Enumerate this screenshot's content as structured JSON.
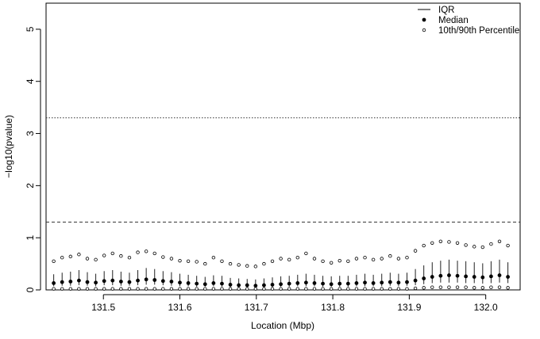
{
  "chart_data": {
    "type": "scatter",
    "title": "",
    "xlabel": "Location (Mbp)",
    "ylabel": "−log10(pvalue)",
    "xlim": [
      131.425,
      132.045
    ],
    "ylim": [
      0,
      5.5
    ],
    "xticks": [
      131.5,
      131.6,
      131.7,
      131.8,
      131.9,
      132.0
    ],
    "xtick_labels": [
      "131.5",
      "131.6",
      "131.7",
      "131.8",
      "131.9",
      "132.0"
    ],
    "yticks": [
      0,
      1,
      2,
      3,
      4,
      5
    ],
    "ytick_labels": [
      "0",
      "1",
      "2",
      "3",
      "4",
      "5"
    ],
    "reference_lines": [
      {
        "y": 3.3,
        "style": "dotted"
      },
      {
        "y": 1.3,
        "style": "dashed"
      }
    ],
    "grid": false,
    "legend": {
      "position": "top-right",
      "entries": [
        {
          "label": "IQR",
          "symbol": "segment"
        },
        {
          "label": "Median",
          "symbol": "filled-circle"
        },
        {
          "label": "10th/90th Percentile",
          "symbol": "open-circle"
        }
      ]
    },
    "x": [
      131.435,
      131.446,
      131.457,
      131.468,
      131.479,
      131.49,
      131.501,
      131.512,
      131.523,
      131.534,
      131.545,
      131.556,
      131.567,
      131.578,
      131.589,
      131.6,
      131.611,
      131.622,
      131.633,
      131.644,
      131.655,
      131.666,
      131.677,
      131.688,
      131.699,
      131.71,
      131.721,
      131.732,
      131.743,
      131.754,
      131.765,
      131.776,
      131.787,
      131.798,
      131.809,
      131.82,
      131.831,
      131.842,
      131.853,
      131.864,
      131.875,
      131.886,
      131.897,
      131.908,
      131.919,
      131.93,
      131.941,
      131.952,
      131.963,
      131.974,
      131.985,
      131.996,
      132.007,
      132.018,
      132.029
    ],
    "median": [
      0.13,
      0.15,
      0.16,
      0.18,
      0.15,
      0.14,
      0.17,
      0.18,
      0.16,
      0.15,
      0.18,
      0.2,
      0.19,
      0.17,
      0.16,
      0.14,
      0.13,
      0.12,
      0.11,
      0.13,
      0.12,
      0.1,
      0.09,
      0.09,
      0.08,
      0.09,
      0.1,
      0.11,
      0.12,
      0.13,
      0.14,
      0.13,
      0.12,
      0.11,
      0.12,
      0.12,
      0.13,
      0.14,
      0.13,
      0.14,
      0.15,
      0.14,
      0.15,
      0.18,
      0.22,
      0.25,
      0.27,
      0.28,
      0.27,
      0.26,
      0.25,
      0.24,
      0.26,
      0.28,
      0.25
    ],
    "q1": [
      0.07,
      0.08,
      0.08,
      0.09,
      0.08,
      0.07,
      0.09,
      0.09,
      0.08,
      0.08,
      0.09,
      0.1,
      0.1,
      0.09,
      0.08,
      0.07,
      0.07,
      0.06,
      0.06,
      0.07,
      0.06,
      0.05,
      0.05,
      0.05,
      0.04,
      0.05,
      0.05,
      0.06,
      0.06,
      0.07,
      0.07,
      0.07,
      0.06,
      0.06,
      0.06,
      0.06,
      0.07,
      0.07,
      0.07,
      0.07,
      0.08,
      0.07,
      0.08,
      0.09,
      0.11,
      0.13,
      0.14,
      0.14,
      0.14,
      0.13,
      0.13,
      0.12,
      0.13,
      0.14,
      0.13
    ],
    "q3": [
      0.3,
      0.33,
      0.35,
      0.38,
      0.34,
      0.31,
      0.36,
      0.38,
      0.35,
      0.33,
      0.38,
      0.42,
      0.4,
      0.36,
      0.34,
      0.31,
      0.29,
      0.27,
      0.25,
      0.28,
      0.27,
      0.23,
      0.22,
      0.21,
      0.2,
      0.22,
      0.24,
      0.26,
      0.27,
      0.29,
      0.31,
      0.29,
      0.27,
      0.26,
      0.27,
      0.27,
      0.29,
      0.31,
      0.29,
      0.31,
      0.33,
      0.31,
      0.33,
      0.4,
      0.47,
      0.53,
      0.56,
      0.58,
      0.56,
      0.55,
      0.53,
      0.51,
      0.55,
      0.58,
      0.53
    ],
    "p10": [
      0.02,
      0.02,
      0.02,
      0.02,
      0.02,
      0.02,
      0.02,
      0.02,
      0.02,
      0.02,
      0.02,
      0.02,
      0.02,
      0.02,
      0.02,
      0.02,
      0.02,
      0.02,
      0.02,
      0.02,
      0.02,
      0.02,
      0.02,
      0.02,
      0.02,
      0.02,
      0.02,
      0.02,
      0.02,
      0.02,
      0.02,
      0.02,
      0.02,
      0.02,
      0.02,
      0.02,
      0.02,
      0.02,
      0.02,
      0.02,
      0.02,
      0.02,
      0.02,
      0.03,
      0.04,
      0.05,
      0.05,
      0.05,
      0.05,
      0.05,
      0.04,
      0.04,
      0.05,
      0.05,
      0.04
    ],
    "p90": [
      0.55,
      0.62,
      0.64,
      0.68,
      0.6,
      0.58,
      0.66,
      0.7,
      0.65,
      0.62,
      0.72,
      0.74,
      0.7,
      0.63,
      0.6,
      0.56,
      0.55,
      0.54,
      0.5,
      0.62,
      0.55,
      0.5,
      0.48,
      0.46,
      0.45,
      0.5,
      0.55,
      0.6,
      0.58,
      0.62,
      0.7,
      0.6,
      0.55,
      0.52,
      0.56,
      0.55,
      0.6,
      0.62,
      0.58,
      0.6,
      0.65,
      0.6,
      0.62,
      0.75,
      0.85,
      0.9,
      0.93,
      0.92,
      0.9,
      0.86,
      0.83,
      0.82,
      0.88,
      0.93,
      0.85
    ]
  }
}
